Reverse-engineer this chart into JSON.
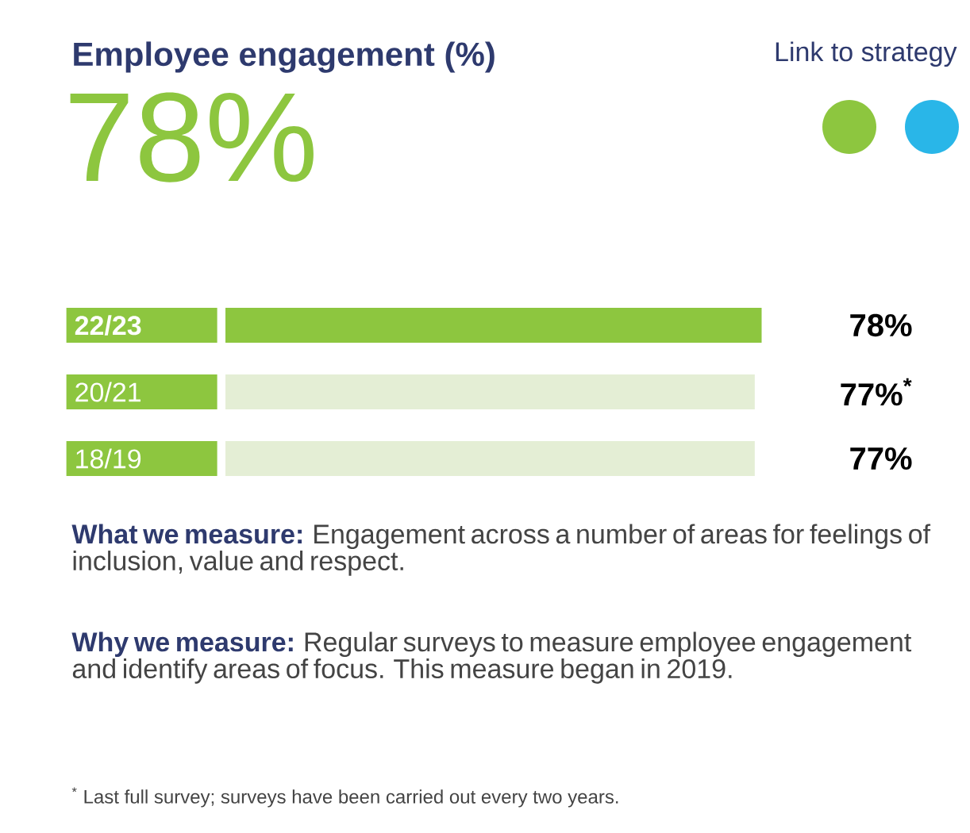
{
  "chart_data": {
    "type": "bar",
    "orientation": "horizontal",
    "title": "Employee engagement (%)",
    "categories": [
      "22/23",
      "20/21",
      "18/19"
    ],
    "values": [
      78,
      77,
      77
    ],
    "colors": [
      "#8dc63f",
      "#e4eed5",
      "#e4eed5"
    ],
    "value_labels": [
      "78%",
      "77%$^{*}$",
      "77%"
    ],
    "annotations": [
      "78%",
      "Link to strategy",
      "**What we measure:** Engagement across a number of areas for feelings of inclusion, value and respect.",
      "**Why we measure:** Regular surveys to measure employee engagement and identify areas of focus. This measure began in 2019.",
      "$^{*}$ Last full survey; surveys have been carried out every two years."
    ]
  }
}
